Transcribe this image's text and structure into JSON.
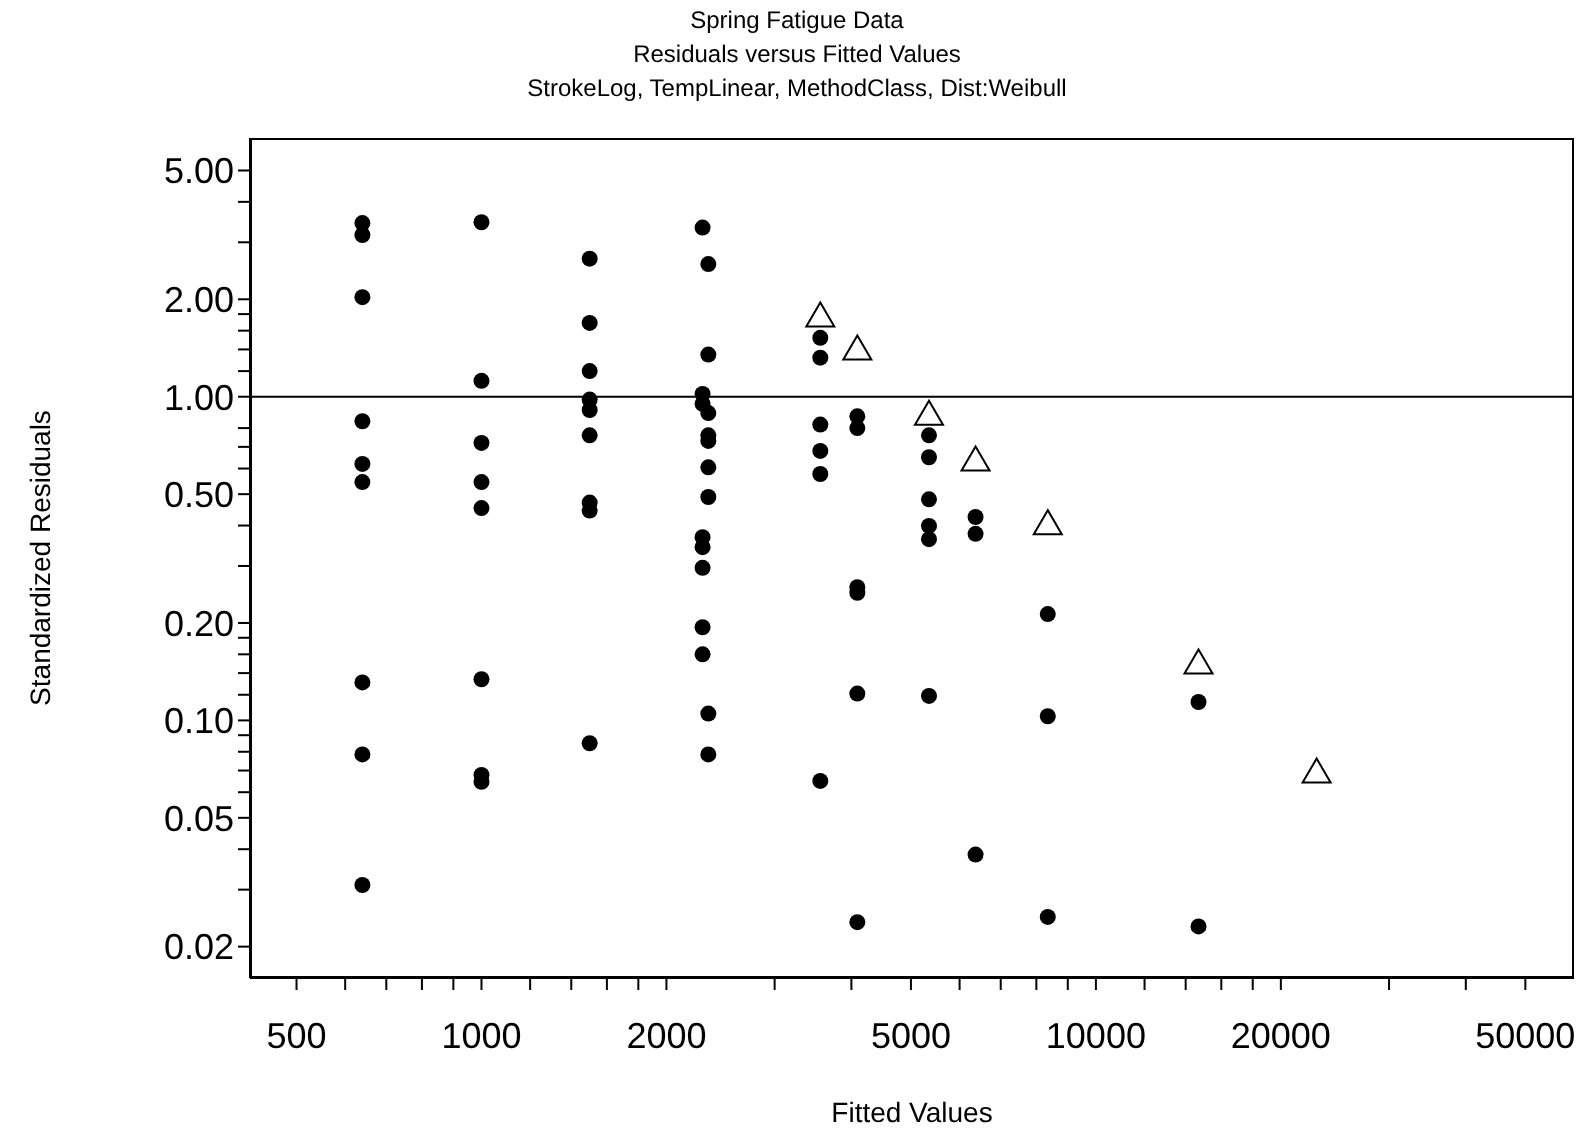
{
  "chart_data": {
    "type": "scatter",
    "title": "Spring Fatigue Data",
    "subtitle": "Residuals versus Fitted Values\nStrokeLog, TempLinear, MethodClass, Dist:Weibull",
    "xlabel": "Fitted Values",
    "ylabel": "Standardized Residuals",
    "log": "xy",
    "grid": false,
    "xlim": [
      420,
      60000
    ],
    "ylim": [
      0.016,
      6.3
    ],
    "xticks": [
      500,
      {
        "value": 600,
        "label": null
      },
      {
        "value": 700,
        "label": null
      },
      {
        "value": 800,
        "label": null
      },
      {
        "value": 900,
        "label": null
      },
      1000,
      {
        "value": 1200,
        "label": null
      },
      {
        "value": 1400,
        "label": null
      },
      {
        "value": 1600,
        "label": null
      },
      {
        "value": 1800,
        "label": null
      },
      2000,
      {
        "value": 3000,
        "label": null
      },
      {
        "value": 4000,
        "label": null
      },
      5000,
      {
        "value": 6000,
        "label": null
      },
      {
        "value": 7000,
        "label": null
      },
      {
        "value": 8000,
        "label": null
      },
      {
        "value": 9000,
        "label": null
      },
      10000,
      {
        "value": 12000,
        "label": null
      },
      {
        "value": 14000,
        "label": null
      },
      {
        "value": 16000,
        "label": null
      },
      {
        "value": 18000,
        "label": null
      },
      20000,
      {
        "value": 30000,
        "label": null
      },
      {
        "value": 40000,
        "label": null
      },
      50000
    ],
    "yticks": [
      {
        "value": 0.02,
        "label": "0.02"
      },
      {
        "value": 0.03,
        "label": null
      },
      {
        "value": 0.04,
        "label": null
      },
      {
        "value": 0.05,
        "label": "0.05"
      },
      {
        "value": 0.06,
        "label": null
      },
      {
        "value": 0.07,
        "label": null
      },
      {
        "value": 0.08,
        "label": null
      },
      {
        "value": 0.09,
        "label": null
      },
      {
        "value": 0.1,
        "label": "0.10"
      },
      {
        "value": 0.12,
        "label": null
      },
      {
        "value": 0.14,
        "label": null
      },
      {
        "value": 0.16,
        "label": null
      },
      {
        "value": 0.18,
        "label": null
      },
      {
        "value": 0.2,
        "label": "0.20"
      },
      {
        "value": 0.3,
        "label": null
      },
      {
        "value": 0.4,
        "label": null
      },
      {
        "value": 0.5,
        "label": "0.50"
      },
      {
        "value": 0.6,
        "label": null
      },
      {
        "value": 0.7,
        "label": null
      },
      {
        "value": 0.8,
        "label": null
      },
      {
        "value": 1,
        "label": "1.00"
      },
      {
        "value": 1.2,
        "label": null
      },
      {
        "value": 1.4,
        "label": null
      },
      {
        "value": 1.6,
        "label": null
      },
      {
        "value": 1.8,
        "label": null
      },
      {
        "value": 2,
        "label": "2.00"
      },
      {
        "value": 3,
        "label": null
      },
      {
        "value": 4,
        "label": null
      },
      {
        "value": 5,
        "label": "5.00"
      }
    ],
    "ref_lines": [
      {
        "axis": "y",
        "value": 1,
        "color": "#000000"
      }
    ],
    "series": [
      {
        "marker": "circle",
        "color": "#000000",
        "x": [
          640,
          640,
          640,
          640,
          640,
          640,
          640,
          640,
          640,
          1000,
          1000,
          1000,
          1000,
          1000,
          1000,
          1000,
          1000,
          1500,
          1500,
          1500,
          1500,
          1500,
          1500,
          1500,
          1500,
          1500,
          2290,
          2340,
          2340,
          2290,
          2290,
          2340,
          2340,
          2340,
          2340,
          2340,
          2290,
          2290,
          2290,
          2290,
          2290,
          2340,
          2340,
          3560,
          3560,
          3560,
          3560,
          3560,
          3560,
          4090,
          4090,
          4090,
          4090,
          4090,
          4090,
          5350,
          5350,
          5350,
          5350,
          5350,
          5350,
          6370,
          6370,
          6370,
          8350,
          8350,
          8350,
          14690,
          14690
        ],
        "values": [
          3.44,
          3.16,
          2.03,
          0.84,
          0.62,
          0.545,
          0.131,
          0.0785,
          0.031,
          3.46,
          1.12,
          0.72,
          0.545,
          0.453,
          0.134,
          0.0678,
          0.0646,
          2.67,
          1.69,
          1.2,
          0.98,
          0.91,
          0.76,
          0.471,
          0.445,
          0.085,
          3.33,
          2.57,
          1.35,
          1.02,
          0.95,
          0.89,
          0.76,
          0.73,
          0.605,
          0.49,
          0.368,
          0.343,
          0.296,
          0.194,
          0.16,
          0.105,
          0.0785,
          1.52,
          1.32,
          0.82,
          0.68,
          0.577,
          0.065,
          0.87,
          0.8,
          0.258,
          0.248,
          0.121,
          0.0238,
          0.76,
          0.65,
          0.482,
          0.399,
          0.363,
          0.119,
          0.425,
          0.377,
          0.0385,
          0.213,
          0.103,
          0.0247,
          0.114,
          0.0231
        ]
      },
      {
        "marker": "triangle",
        "color": "#000000",
        "x": [
          3560,
          4090,
          5350,
          6370,
          8350,
          14690,
          22870
        ],
        "values": [
          1.77,
          1.4,
          0.88,
          0.635,
          0.404,
          0.15,
          0.069
        ]
      }
    ]
  }
}
